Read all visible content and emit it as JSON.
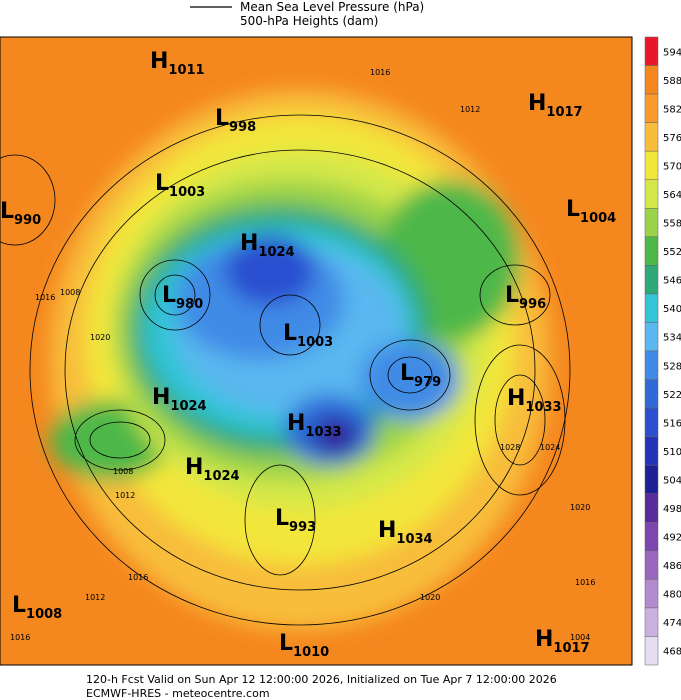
{
  "header": {
    "legend": [
      "Mean Sea Level Pressure (hPa)",
      "500-hPa Heights (dam)"
    ]
  },
  "colorbar": {
    "levels": [
      594,
      588,
      582,
      576,
      570,
      564,
      558,
      552,
      546,
      540,
      534,
      528,
      522,
      516,
      510,
      504,
      498,
      492,
      486,
      480,
      474,
      468
    ],
    "colors": [
      "#e8182a",
      "#f5871f",
      "#f89a2c",
      "#f8bd3a",
      "#f3e63a",
      "#d4e84a",
      "#9ad24a",
      "#4db848",
      "#2fa87a",
      "#33c4d8",
      "#5ab7ef",
      "#3f8be6",
      "#2f6ad8",
      "#2a4fd0",
      "#2233b8",
      "#1f1f95",
      "#5a2a9a",
      "#7d45ae",
      "#9a66c0",
      "#b48ad0",
      "#cbb1df",
      "#e6dcef"
    ]
  },
  "map": {
    "centers": [
      {
        "letter": "H",
        "value": "1011"
      },
      {
        "letter": "L",
        "value": "998"
      },
      {
        "letter": "L",
        "value": "1003"
      },
      {
        "letter": "L",
        "value": "990"
      },
      {
        "letter": "H",
        "value": "1024"
      },
      {
        "letter": "L",
        "value": "980"
      },
      {
        "letter": "L",
        "value": "1003"
      },
      {
        "letter": "H",
        "value": "1024"
      },
      {
        "letter": "H",
        "value": "1033"
      },
      {
        "letter": "L",
        "value": "979"
      },
      {
        "letter": "H",
        "value": "1033"
      },
      {
        "letter": "H",
        "value": "1024"
      },
      {
        "letter": "L",
        "value": "993"
      },
      {
        "letter": "H",
        "value": "1034"
      },
      {
        "letter": "L",
        "value": "1008"
      },
      {
        "letter": "L",
        "value": "1010"
      },
      {
        "letter": "H",
        "value": "1017"
      },
      {
        "letter": "H",
        "value": "1017"
      },
      {
        "letter": "L",
        "value": "1004"
      },
      {
        "letter": "L",
        "value": "996"
      }
    ],
    "isobar_labels": [
      "1016",
      "1020",
      "1012",
      "1008",
      "1016",
      "1012",
      "1016",
      "1020",
      "1028",
      "1024",
      "1020",
      "1016",
      "1012",
      "1016",
      "1008",
      "1004"
    ]
  },
  "footer": [
    "120-h Fcst Valid on Sun Apr 12 12:00:00 2026, Initialized on Tue Apr  7 12:00:00 2026",
    "ECMWF-HRES - meteocentre.com"
  ]
}
